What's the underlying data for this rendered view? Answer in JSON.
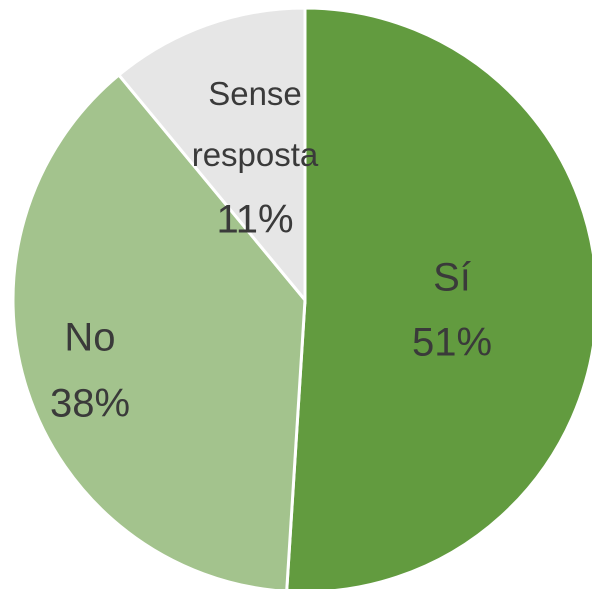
{
  "chart_data": {
    "type": "pie",
    "categories": [
      "Sí",
      "No",
      "Sense resposta"
    ],
    "values": [
      51,
      38,
      11
    ],
    "value_labels": [
      "51%",
      "38%",
      "11%"
    ],
    "colors": [
      "#629b3f",
      "#a3c38d",
      "#e6e6e6"
    ]
  }
}
